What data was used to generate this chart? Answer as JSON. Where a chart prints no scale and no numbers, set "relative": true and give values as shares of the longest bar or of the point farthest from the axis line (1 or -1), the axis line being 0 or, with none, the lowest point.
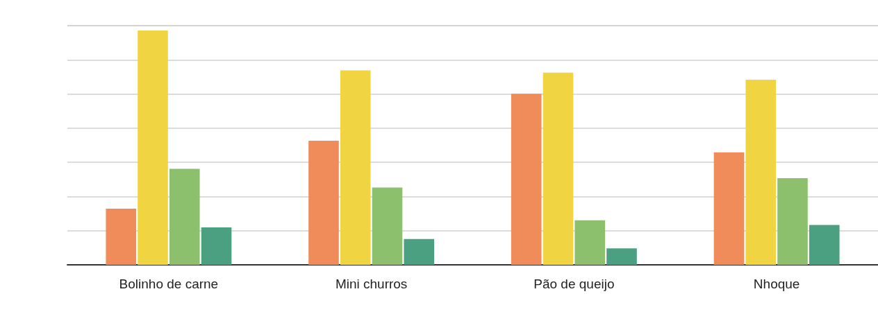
{
  "chart_data": {
    "type": "bar",
    "relative": true,
    "grid": "y",
    "categories": [
      "Bolinho de carne",
      "Mini churros",
      "Pão de queijo",
      "Nhoque"
    ],
    "series": [
      {
        "color": "#ef8c5a",
        "values": [
          0.24,
          0.53,
          0.73,
          0.48
        ]
      },
      {
        "color": "#f0d442",
        "values": [
          1,
          0.83,
          0.82,
          0.79
        ]
      },
      {
        "color": "#8cc06c",
        "values": [
          0.41,
          0.33,
          0.19,
          0.37
        ]
      },
      {
        "color": "#4aa080",
        "values": [
          0.16,
          0.11,
          0.07,
          0.17
        ]
      }
    ]
  }
}
